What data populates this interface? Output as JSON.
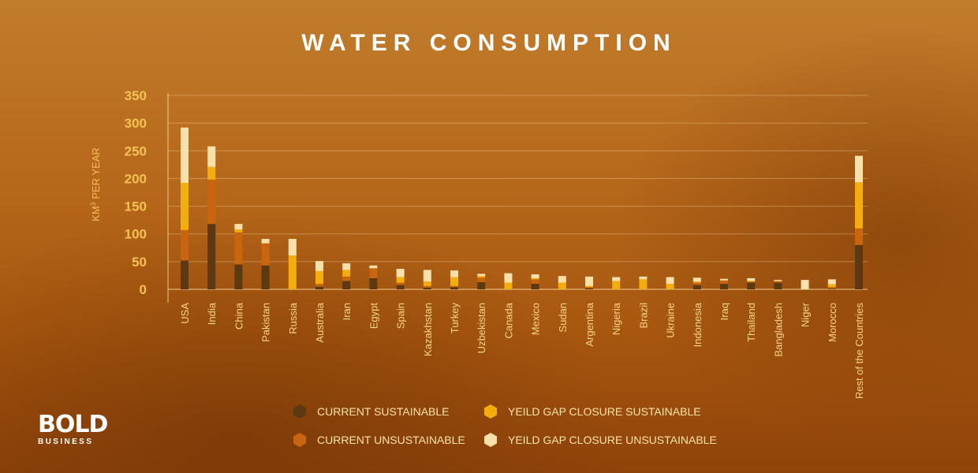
{
  "chart_data": {
    "type": "bar",
    "stacked": true,
    "title": "WATER CONSUMPTION",
    "ylabel": "KM³ PER YEAR",
    "ylabel_base": "KM",
    "ylabel_sup": "3",
    "ylabel_rest": " PER YEAR",
    "ylim": [
      0,
      350
    ],
    "yticks": [
      0,
      50,
      100,
      150,
      200,
      250,
      300,
      350
    ],
    "grid": true,
    "legend_position": "bottom",
    "categories": [
      "USA",
      "India",
      "China",
      "Pakistan",
      "Russia",
      "Australia",
      "Iran",
      "Egypt",
      "Spain",
      "Kazakhstan",
      "Turkey",
      "Uzbekistan",
      "Canada",
      "Mexico",
      "Sudan",
      "Argentina",
      "Nigeria",
      "Brazil",
      "Ukraine",
      "Indonesia",
      "Iraq",
      "Thailand",
      "Bangladesh",
      "Niger",
      "Morocco",
      "Rest of the Countries"
    ],
    "series": [
      {
        "name": "CURRENT SUSTAINABLE",
        "color": "#5c3912",
        "values": [
          52,
          118,
          45,
          43,
          0,
          5,
          15,
          20,
          8,
          3,
          4,
          13,
          0,
          10,
          0,
          2,
          0,
          0,
          0,
          8,
          10,
          12,
          12,
          0,
          1,
          80
        ]
      },
      {
        "name": "CURRENT UNSUSTAINABLE",
        "color": "#c8650e",
        "values": [
          55,
          80,
          58,
          40,
          0,
          5,
          8,
          18,
          4,
          3,
          2,
          8,
          0,
          8,
          0,
          2,
          0,
          0,
          0,
          4,
          6,
          2,
          3,
          0,
          3,
          30
        ]
      },
      {
        "name": "YEILD GAP CLOSURE SUSTAINABLE",
        "color": "#f3ad0d",
        "values": [
          85,
          23,
          5,
          0,
          61,
          23,
          12,
          0,
          10,
          8,
          16,
          3,
          12,
          2,
          12,
          2,
          15,
          18,
          10,
          2,
          0,
          1,
          0,
          0,
          5,
          83
        ]
      },
      {
        "name": "YEILD GAP CLOSURE UNSUSTAINABLE",
        "color": "#f8e0aa",
        "values": [
          100,
          37,
          10,
          8,
          30,
          18,
          12,
          5,
          15,
          21,
          12,
          4,
          17,
          7,
          12,
          17,
          7,
          5,
          12,
          7,
          3,
          5,
          2,
          17,
          9,
          48
        ]
      }
    ]
  },
  "logo": {
    "main": "BOLD",
    "sub": "BUSINESS"
  }
}
